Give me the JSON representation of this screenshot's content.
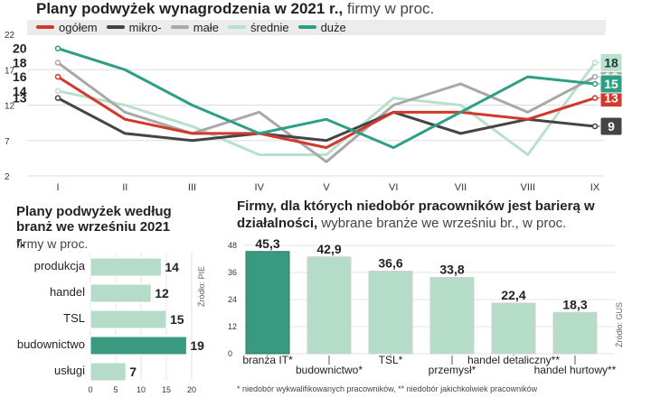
{
  "chart_data": [
    {
      "type": "line",
      "title": "Plany  podwyżek wynagrodzenia w 2021 r.,",
      "subtitle": "firmy w proc.",
      "categories": [
        "I",
        "II",
        "III",
        "IV",
        "V",
        "VI",
        "VII",
        "VIII",
        "IX"
      ],
      "ylim": [
        2,
        22
      ],
      "yticks": [
        2,
        7,
        12,
        17,
        22
      ],
      "series": [
        {
          "name": "ogółem",
          "color": "#d0392b",
          "values": [
            16,
            10,
            8,
            8,
            6,
            11,
            11,
            10,
            13
          ],
          "start_label": "16",
          "end_label": "13"
        },
        {
          "name": "mikro-",
          "color": "#444444",
          "values": [
            13,
            8,
            7,
            8,
            7,
            11,
            8,
            10,
            9
          ],
          "start_label": "13",
          "end_label": "9"
        },
        {
          "name": "małe",
          "color": "#a8a8a8",
          "values": [
            18,
            11,
            8,
            11,
            4,
            12,
            15,
            11,
            16
          ],
          "start_label": "18",
          "end_label": "16"
        },
        {
          "name": "średnie",
          "color": "#b8e0cc",
          "values": [
            14,
            12,
            9,
            5,
            5,
            13,
            12,
            5,
            18
          ],
          "start_label": "14",
          "end_label": "18"
        },
        {
          "name": "duże",
          "color": "#2e9e84",
          "values": [
            20,
            17,
            12,
            8,
            10,
            6,
            11,
            16,
            15
          ],
          "start_label": "20",
          "end_label": "15"
        }
      ]
    },
    {
      "type": "bar",
      "orientation": "horizontal",
      "title": "Plany podwyżek według branż we wrześniu 2021 r.",
      "subtitle": "firmy w proc.",
      "categories": [
        "produkcja",
        "handel",
        "TSL",
        "budownictwo",
        "usługi"
      ],
      "values": [
        14,
        12,
        15,
        19,
        7
      ],
      "value_labels": [
        "14",
        "12",
        "15",
        "19",
        "7"
      ],
      "xlim": [
        0,
        20
      ],
      "xticks": [
        "0",
        "5",
        "10",
        "15",
        "20"
      ],
      "highlight": "budownictwo",
      "source": "Źródło: PIE"
    },
    {
      "type": "bar",
      "title": "Firmy, dla których niedobór pracowników jest barierą w działalności,",
      "subtitle": "wybrane branże we wrześniu br., w proc.",
      "categories": [
        "branża IT*",
        "budownictwo*",
        "TSL*",
        "przemysł*",
        "handel detaliczny**",
        "handel hurtowy**"
      ],
      "values": [
        45.3,
        42.9,
        36.6,
        33.8,
        22.4,
        18.3
      ],
      "value_labels": [
        "45,3",
        "42,9",
        "36,6",
        "33,8",
        "22,4",
        "18,3"
      ],
      "ylim": [
        0,
        48
      ],
      "yticks": [
        "0",
        "12",
        "24",
        "36",
        "48"
      ],
      "highlight": "branża IT*",
      "source": "Źródło: GUS",
      "footnote": "* niedobór wykwalifikowanych pracowników, ** niedobór jakichkolwiek pracowników"
    }
  ],
  "colors": {
    "highlight": "#3a9a80",
    "bar": "#b5dcc8",
    "bar_border": "#ffffff"
  }
}
